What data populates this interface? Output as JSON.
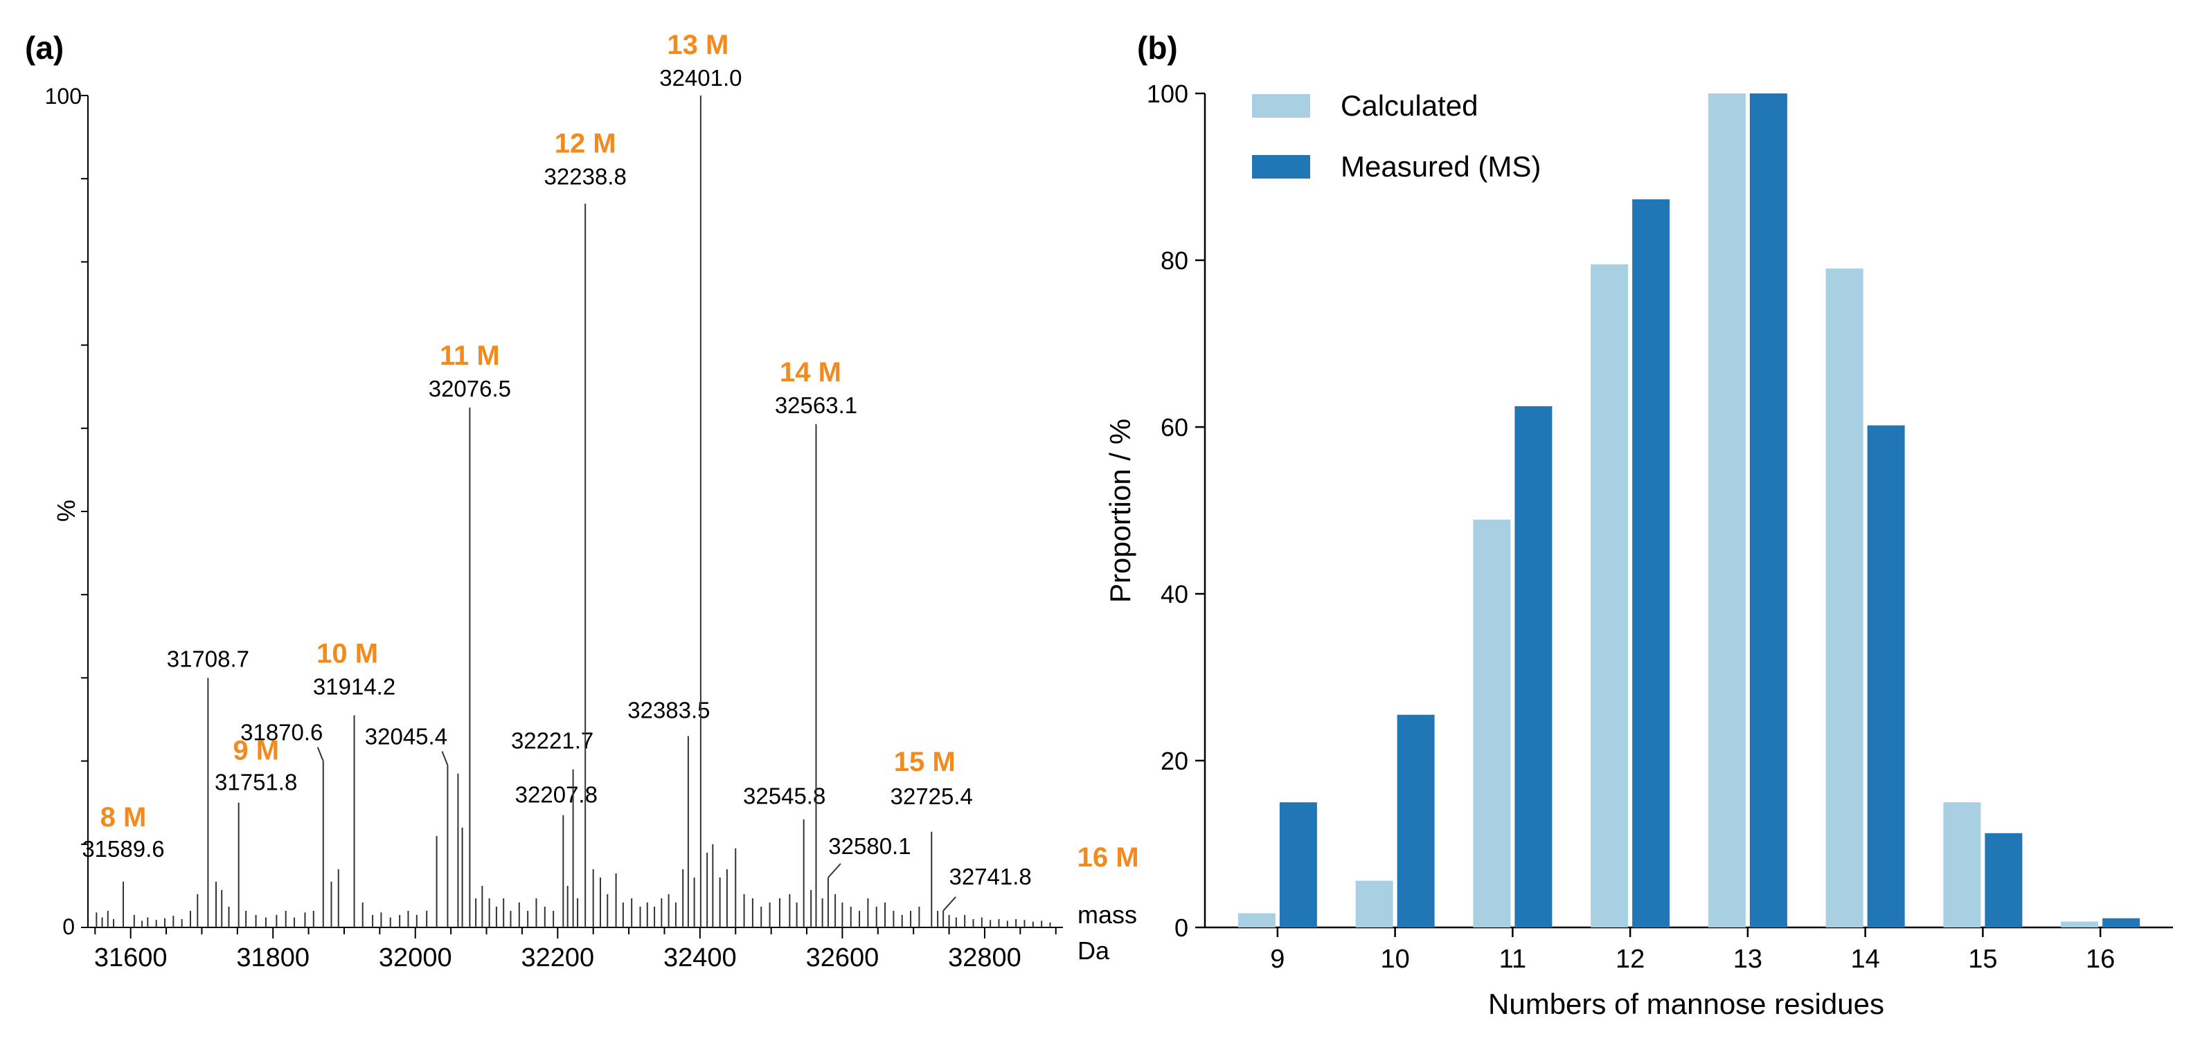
{
  "panel_a": {
    "panel_label": "(a)",
    "y_axis_label": "%",
    "y_top_label": "100",
    "y_bottom_label": "0",
    "x_unit_label_1": "mass",
    "x_unit_label_2": "Da"
  },
  "panel_b": {
    "panel_label": "(b)"
  },
  "colors": {
    "label_orange": "#f28a1e",
    "calculated": "#a9cfe3",
    "measured": "#2176b5",
    "axis": "#000000",
    "stick": "#333333"
  },
  "chart_data": [
    {
      "type": "bar",
      "title": "",
      "xlabel": "",
      "ylabel": "%",
      "xlim": [
        31540,
        32910
      ],
      "ylim": [
        0,
        100
      ],
      "x_ticks": [
        31600,
        31800,
        32000,
        32200,
        32400,
        32600,
        32800
      ],
      "x_tick_labels": [
        "31600",
        "31800",
        "32000",
        "32200",
        "32400",
        "32600",
        "32800"
      ],
      "labeled_peaks": [
        {
          "mass": 31589.6,
          "intensity": 5.5,
          "label": "31589.6",
          "glyco": "8 M"
        },
        {
          "mass": 31708.7,
          "intensity": 30.0,
          "label": "31708.7",
          "glyco": ""
        },
        {
          "mass": 31751.8,
          "intensity": 15.0,
          "label": "31751.8",
          "glyco": "9 M"
        },
        {
          "mass": 31870.6,
          "intensity": 20.0,
          "label": "31870.6",
          "glyco": ""
        },
        {
          "mass": 31914.2,
          "intensity": 25.5,
          "label": "31914.2",
          "glyco": "10 M"
        },
        {
          "mass": 32045.4,
          "intensity": 19.5,
          "label": "32045.4",
          "glyco": ""
        },
        {
          "mass": 32076.5,
          "intensity": 62.5,
          "label": "32076.5",
          "glyco": "11 M"
        },
        {
          "mass": 32207.8,
          "intensity": 13.5,
          "label": "32207.8",
          "glyco": ""
        },
        {
          "mass": 32221.7,
          "intensity": 19.0,
          "label": "32221.7",
          "glyco": ""
        },
        {
          "mass": 32238.8,
          "intensity": 87.0,
          "label": "32238.8",
          "glyco": "12 M"
        },
        {
          "mass": 32383.5,
          "intensity": 23.0,
          "label": "32383.5",
          "glyco": ""
        },
        {
          "mass": 32401.0,
          "intensity": 100.0,
          "label": "32401.0",
          "glyco": "13 M"
        },
        {
          "mass": 32545.8,
          "intensity": 13.0,
          "label": "32545.8",
          "glyco": ""
        },
        {
          "mass": 32563.1,
          "intensity": 60.5,
          "label": "32563.1",
          "glyco": "14 M"
        },
        {
          "mass": 32580.1,
          "intensity": 6.0,
          "label": "32580.1",
          "glyco": ""
        },
        {
          "mass": 32725.4,
          "intensity": 11.5,
          "label": "32725.4",
          "glyco": "15 M"
        },
        {
          "mass": 32741.8,
          "intensity": 2.0,
          "label": "32741.8",
          "glyco": "16 M"
        }
      ],
      "minor_peaks": [
        [
          31552,
          1.8
        ],
        [
          31560,
          1.2
        ],
        [
          31568,
          2.0
        ],
        [
          31576,
          1.0
        ],
        [
          31605,
          1.5
        ],
        [
          31616,
          0.8
        ],
        [
          31624,
          1.2
        ],
        [
          31636,
          0.9
        ],
        [
          31648,
          1.1
        ],
        [
          31660,
          1.4
        ],
        [
          31672,
          1.0
        ],
        [
          31684,
          2.0
        ],
        [
          31694,
          4.0
        ],
        [
          31720,
          5.5
        ],
        [
          31728,
          4.5
        ],
        [
          31738,
          2.5
        ],
        [
          31762,
          2.0
        ],
        [
          31776,
          1.5
        ],
        [
          31790,
          1.2
        ],
        [
          31805,
          1.5
        ],
        [
          31818,
          2.0
        ],
        [
          31830,
          1.2
        ],
        [
          31845,
          1.8
        ],
        [
          31857,
          2.0
        ],
        [
          31882,
          5.5
        ],
        [
          31892,
          7.0
        ],
        [
          31926,
          3.0
        ],
        [
          31940,
          1.5
        ],
        [
          31952,
          1.8
        ],
        [
          31965,
          1.2
        ],
        [
          31978,
          1.5
        ],
        [
          31990,
          2.0
        ],
        [
          32002,
          1.5
        ],
        [
          32016,
          2.0
        ],
        [
          32030,
          11.0
        ],
        [
          32060,
          18.5
        ],
        [
          32066,
          12.0
        ],
        [
          32085,
          3.5
        ],
        [
          32094,
          5.0
        ],
        [
          32104,
          3.5
        ],
        [
          32114,
          2.5
        ],
        [
          32124,
          3.5
        ],
        [
          32134,
          2.0
        ],
        [
          32146,
          3.0
        ],
        [
          32158,
          2.0
        ],
        [
          32170,
          3.5
        ],
        [
          32182,
          2.5
        ],
        [
          32194,
          2.0
        ],
        [
          32214,
          5.0
        ],
        [
          32228,
          3.5
        ],
        [
          32250,
          7.0
        ],
        [
          32260,
          6.0
        ],
        [
          32270,
          4.0
        ],
        [
          32282,
          6.5
        ],
        [
          32292,
          3.0
        ],
        [
          32304,
          3.5
        ],
        [
          32316,
          2.5
        ],
        [
          32326,
          3.0
        ],
        [
          32336,
          2.5
        ],
        [
          32346,
          3.5
        ],
        [
          32356,
          4.0
        ],
        [
          32366,
          3.0
        ],
        [
          32376,
          7.0
        ],
        [
          32392,
          6.0
        ],
        [
          32410,
          9.0
        ],
        [
          32418,
          10.0
        ],
        [
          32428,
          6.0
        ],
        [
          32438,
          7.0
        ],
        [
          32450,
          9.5
        ],
        [
          32462,
          4.0
        ],
        [
          32474,
          3.5
        ],
        [
          32486,
          2.5
        ],
        [
          32498,
          3.0
        ],
        [
          32512,
          3.5
        ],
        [
          32526,
          4.0
        ],
        [
          32536,
          3.0
        ],
        [
          32556,
          4.5
        ],
        [
          32572,
          3.5
        ],
        [
          32590,
          4.0
        ],
        [
          32600,
          3.0
        ],
        [
          32612,
          2.5
        ],
        [
          32624,
          2.0
        ],
        [
          32636,
          3.5
        ],
        [
          32648,
          2.5
        ],
        [
          32660,
          3.0
        ],
        [
          32672,
          2.0
        ],
        [
          32684,
          1.5
        ],
        [
          32696,
          2.0
        ],
        [
          32708,
          2.5
        ],
        [
          32734,
          2.0
        ],
        [
          32750,
          1.5
        ],
        [
          32760,
          1.2
        ],
        [
          32772,
          1.5
        ],
        [
          32784,
          1.0
        ],
        [
          32796,
          1.2
        ],
        [
          32808,
          0.9
        ],
        [
          32820,
          1.0
        ],
        [
          32832,
          0.8
        ],
        [
          32844,
          1.0
        ],
        [
          32856,
          0.9
        ],
        [
          32868,
          0.7
        ],
        [
          32880,
          0.8
        ],
        [
          32892,
          0.6
        ]
      ]
    },
    {
      "type": "bar",
      "title": "",
      "xlabel": "Numbers of mannose residues",
      "ylabel": "Proportion / %",
      "ylim": [
        0,
        100
      ],
      "y_ticks": [
        0,
        20,
        40,
        60,
        80,
        100
      ],
      "categories": [
        "9",
        "10",
        "11",
        "12",
        "13",
        "14",
        "15",
        "16"
      ],
      "legend_position": "top-left",
      "series": [
        {
          "name": "Calculated",
          "values": [
            1.7,
            5.6,
            48.9,
            79.5,
            100.0,
            79.0,
            15.0,
            0.7
          ]
        },
        {
          "name": "Measured (MS)",
          "values": [
            15.0,
            25.5,
            62.5,
            87.3,
            100.0,
            60.2,
            11.3,
            1.1
          ]
        }
      ]
    }
  ]
}
